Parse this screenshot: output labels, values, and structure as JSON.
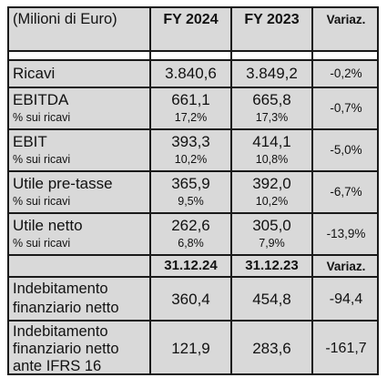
{
  "header": {
    "unit_label": "(Milioni di Euro)",
    "col_2024": "FY 2024",
    "col_2023": "FY 2023",
    "col_var": "Variaz."
  },
  "rows": [
    {
      "label": "Ricavi",
      "sub": "",
      "v2024": "3.840,6",
      "p2024": "",
      "v2023": "3.849,2",
      "p2023": "",
      "var": "-0,2%"
    },
    {
      "label": "EBITDA",
      "sub": "% sui ricavi",
      "v2024": "661,1",
      "p2024": "17,2%",
      "v2023": "665,8",
      "p2023": "17,3%",
      "var": "-0,7%"
    },
    {
      "label": "EBIT",
      "sub": "% sui ricavi",
      "v2024": "393,3",
      "p2024": "10,2%",
      "v2023": "414,1",
      "p2023": "10,8%",
      "var": "-5,0%"
    },
    {
      "label": "Utile pre-tasse",
      "sub": "% sui ricavi",
      "v2024": "365,9",
      "p2024": "9,5%",
      "v2023": "392,0",
      "p2023": "10,2%",
      "var": "-6,7%"
    },
    {
      "label": "Utile netto",
      "sub": "% sui ricavi",
      "v2024": "262,6",
      "p2024": "6,8%",
      "v2023": "305,0",
      "p2023": "7,9%",
      "var": "-13,9%"
    }
  ],
  "header2": {
    "col_a": "31.12.24",
    "col_b": "31.12.23",
    "col_var": "Variaz."
  },
  "debt_rows": [
    {
      "line1": "Indebitamento",
      "line2": "finanziario netto",
      "line3": "",
      "a": "360,4",
      "b": "454,8",
      "var": "-94,4"
    },
    {
      "line1": "Indebitamento",
      "line2": "finanziario netto",
      "line3": "ante IFRS 16",
      "a": "121,9",
      "b": "283,6",
      "var": "-161,7"
    }
  ]
}
